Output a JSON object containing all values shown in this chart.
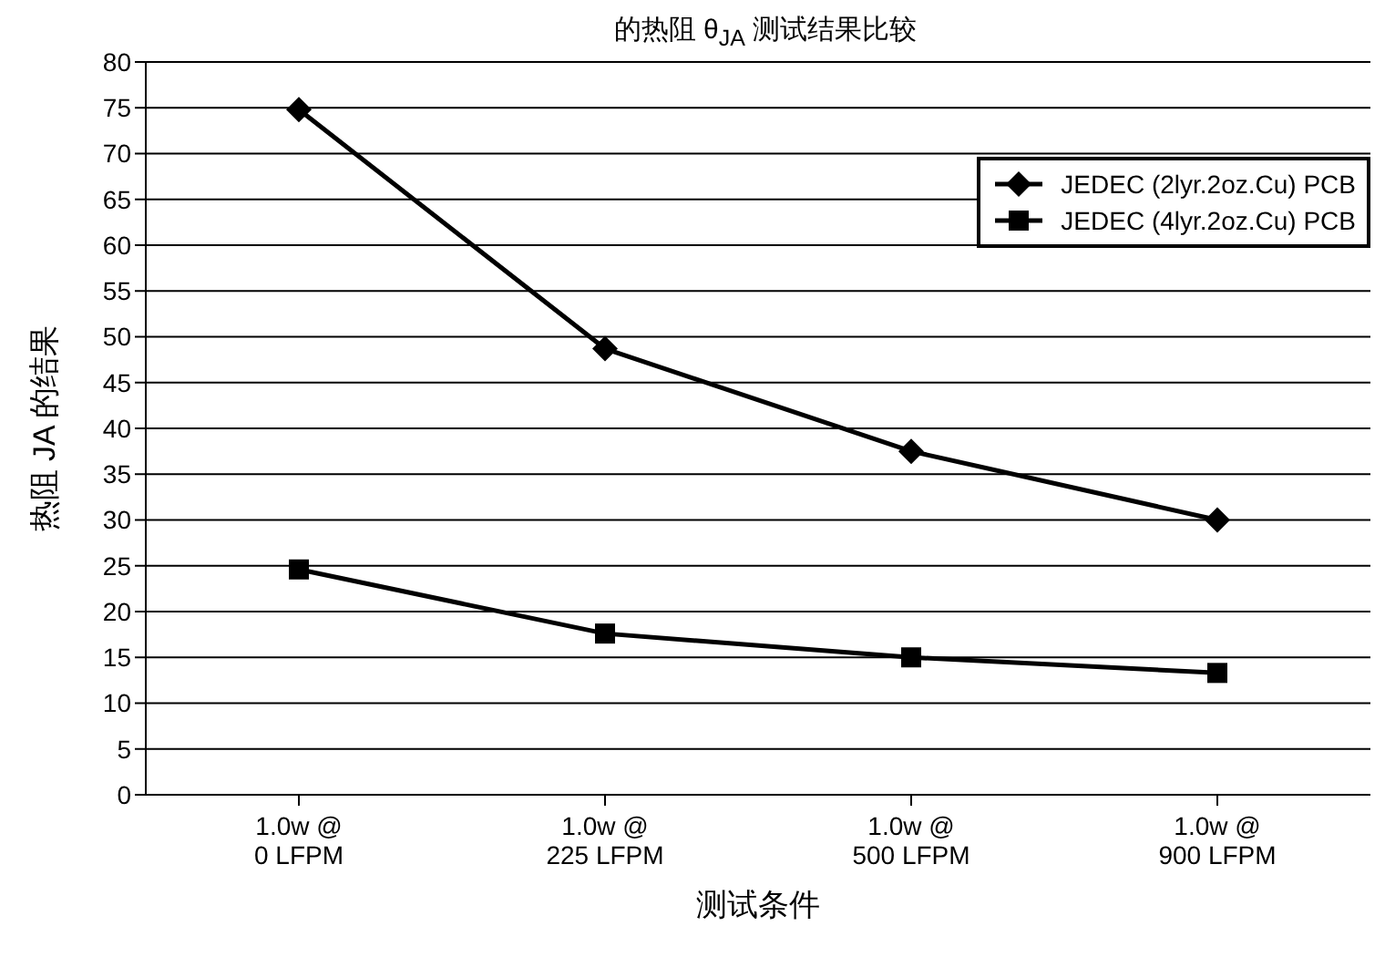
{
  "chart_data": {
    "type": "line",
    "title": "的热阻 θ$_{JA}$ 测试结果比较",
    "xlabel": "测试条件",
    "ylabel": "热阻 JA 的结果",
    "categories": [
      "1.0w @\n0 LFPM",
      "1.0w @\n225 LFPM",
      "1.0w @\n500 LFPM",
      "1.0w @\n900 LFPM"
    ],
    "series": [
      {
        "name": "JEDEC (2lyr.2oz.Cu) PCB",
        "color": "#000000",
        "marker": "diamond",
        "values": [
          74.8,
          48.7,
          37.5,
          30
        ]
      },
      {
        "name": "JEDEC (4lyr.2oz.Cu) PCB",
        "color": "#000000",
        "marker": "square",
        "values": [
          24.6,
          17.6,
          15,
          13.3
        ]
      }
    ],
    "ylim": [
      0,
      80
    ],
    "yticks": [
      0,
      5,
      10,
      15,
      20,
      25,
      30,
      35,
      40,
      45,
      50,
      55,
      60,
      65,
      70,
      75,
      80
    ],
    "grid": "y",
    "legend": "top right",
    "line_style": "solid"
  }
}
